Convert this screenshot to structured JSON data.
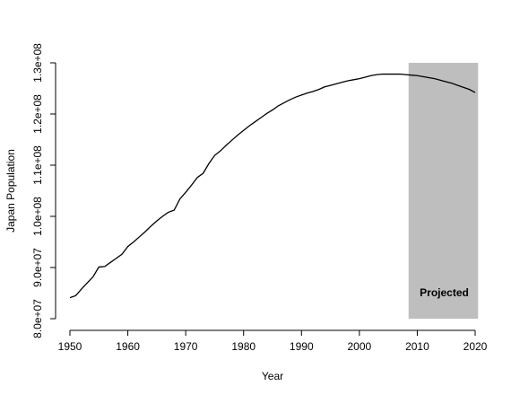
{
  "chart_data": {
    "type": "line",
    "title": "",
    "xlabel": "Year",
    "ylabel": "Japan Population",
    "xlim": [
      1950,
      2020
    ],
    "ylim": [
      80000000,
      130000000
    ],
    "x_ticks": [
      1950,
      1960,
      1970,
      1980,
      1990,
      2000,
      2010,
      2020
    ],
    "x_tick_labels": [
      "1950",
      "1960",
      "1970",
      "1980",
      "1990",
      "2000",
      "2010",
      "2020"
    ],
    "y_ticks": [
      80000000,
      90000000,
      100000000,
      110000000,
      120000000,
      130000000
    ],
    "y_tick_labels": [
      "8.0e+07",
      "9.0e+07",
      "1.0e+08",
      "1.1e+08",
      "1.2e+08",
      "1.3e+08"
    ],
    "grid": false,
    "series": [
      {
        "color": "#000000",
        "x": [
          1950,
          1951,
          1952,
          1953,
          1954,
          1955,
          1956,
          1957,
          1958,
          1959,
          1960,
          1961,
          1962,
          1963,
          1964,
          1965,
          1966,
          1967,
          1968,
          1969,
          1970,
          1971,
          1972,
          1973,
          1974,
          1975,
          1976,
          1977,
          1978,
          1979,
          1980,
          1981,
          1982,
          1983,
          1984,
          1985,
          1986,
          1987,
          1988,
          1989,
          1990,
          1991,
          1992,
          1993,
          1994,
          1995,
          1996,
          1997,
          1998,
          1999,
          2000,
          2001,
          2002,
          2003,
          2004,
          2005,
          2006,
          2007,
          2008,
          2009,
          2010,
          2011,
          2012,
          2013,
          2014,
          2015,
          2016,
          2017,
          2018,
          2019,
          2020
        ],
        "values": [
          84100000,
          84500000,
          85800000,
          87000000,
          88200000,
          90100000,
          90200000,
          91000000,
          91800000,
          92600000,
          94100000,
          95000000,
          96000000,
          97000000,
          98100000,
          99100000,
          100000000,
          100800000,
          101200000,
          103400000,
          104700000,
          106100000,
          107600000,
          108400000,
          110300000,
          111900000,
          112800000,
          113900000,
          114900000,
          115900000,
          116800000,
          117700000,
          118500000,
          119300000,
          120100000,
          120800000,
          121600000,
          122200000,
          122800000,
          123300000,
          123700000,
          124100000,
          124400000,
          124800000,
          125300000,
          125600000,
          125900000,
          126200000,
          126500000,
          126700000,
          126900000,
          127200000,
          127500000,
          127700000,
          127800000,
          127800000,
          127800000,
          127800000,
          127700000,
          127600000,
          127500000,
          127300000,
          127100000,
          126900000,
          126600000,
          126300000,
          126000000,
          125600000,
          125200000,
          124800000,
          124200000
        ]
      }
    ],
    "annotations": [
      {
        "text": "Projected",
        "x_start": 2008.5,
        "x_end": 2020.5,
        "y_start": 80000000,
        "y_end": 130000000,
        "fill_color": "#bebebe"
      }
    ]
  }
}
